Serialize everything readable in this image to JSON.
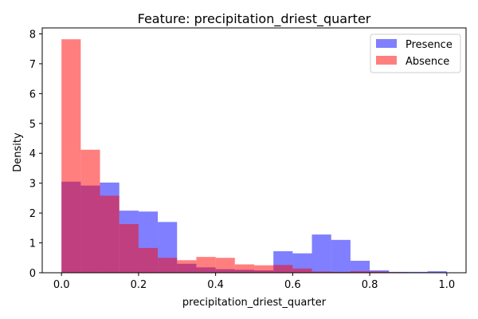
{
  "chart_data": {
    "type": "histogram",
    "title": "Feature: precipitation_driest_quarter",
    "xlabel": "precipitation_driest_quarter",
    "ylabel": "Density",
    "xlim": [
      -0.05,
      1.05
    ],
    "ylim": [
      0,
      8.2
    ],
    "xticks": [
      0.0,
      0.2,
      0.4,
      0.6,
      0.8,
      1.0
    ],
    "xtick_labels": [
      "0.0",
      "0.2",
      "0.4",
      "0.6",
      "0.8",
      "1.0"
    ],
    "yticks": [
      0,
      1,
      2,
      3,
      4,
      5,
      6,
      7,
      8
    ],
    "ytick_labels": [
      "0",
      "1",
      "2",
      "3",
      "4",
      "5",
      "6",
      "7",
      "8"
    ],
    "grid": false,
    "legend_position": "top-right",
    "bin_edges": [
      0.0,
      0.05,
      0.1,
      0.15,
      0.2,
      0.25,
      0.3,
      0.35,
      0.4,
      0.45,
      0.5,
      0.55,
      0.6,
      0.65,
      0.7,
      0.75,
      0.8,
      0.85,
      0.9,
      0.95,
      1.0
    ],
    "series": [
      {
        "name": "Presence",
        "color": "#0000ff",
        "opacity": 0.5,
        "values": [
          3.05,
          2.92,
          3.02,
          2.08,
          2.05,
          1.7,
          0.3,
          0.18,
          0.12,
          0.1,
          0.08,
          0.72,
          0.65,
          1.28,
          1.1,
          0.4,
          0.08,
          0.03,
          0.03,
          0.05
        ]
      },
      {
        "name": "Absence",
        "color": "#ff0000",
        "opacity": 0.5,
        "values": [
          7.82,
          4.12,
          2.58,
          1.63,
          0.83,
          0.5,
          0.42,
          0.53,
          0.5,
          0.28,
          0.25,
          0.26,
          0.14,
          0.04,
          0.03,
          0.05,
          0.04,
          0.02,
          0.01,
          0.01
        ]
      }
    ]
  }
}
